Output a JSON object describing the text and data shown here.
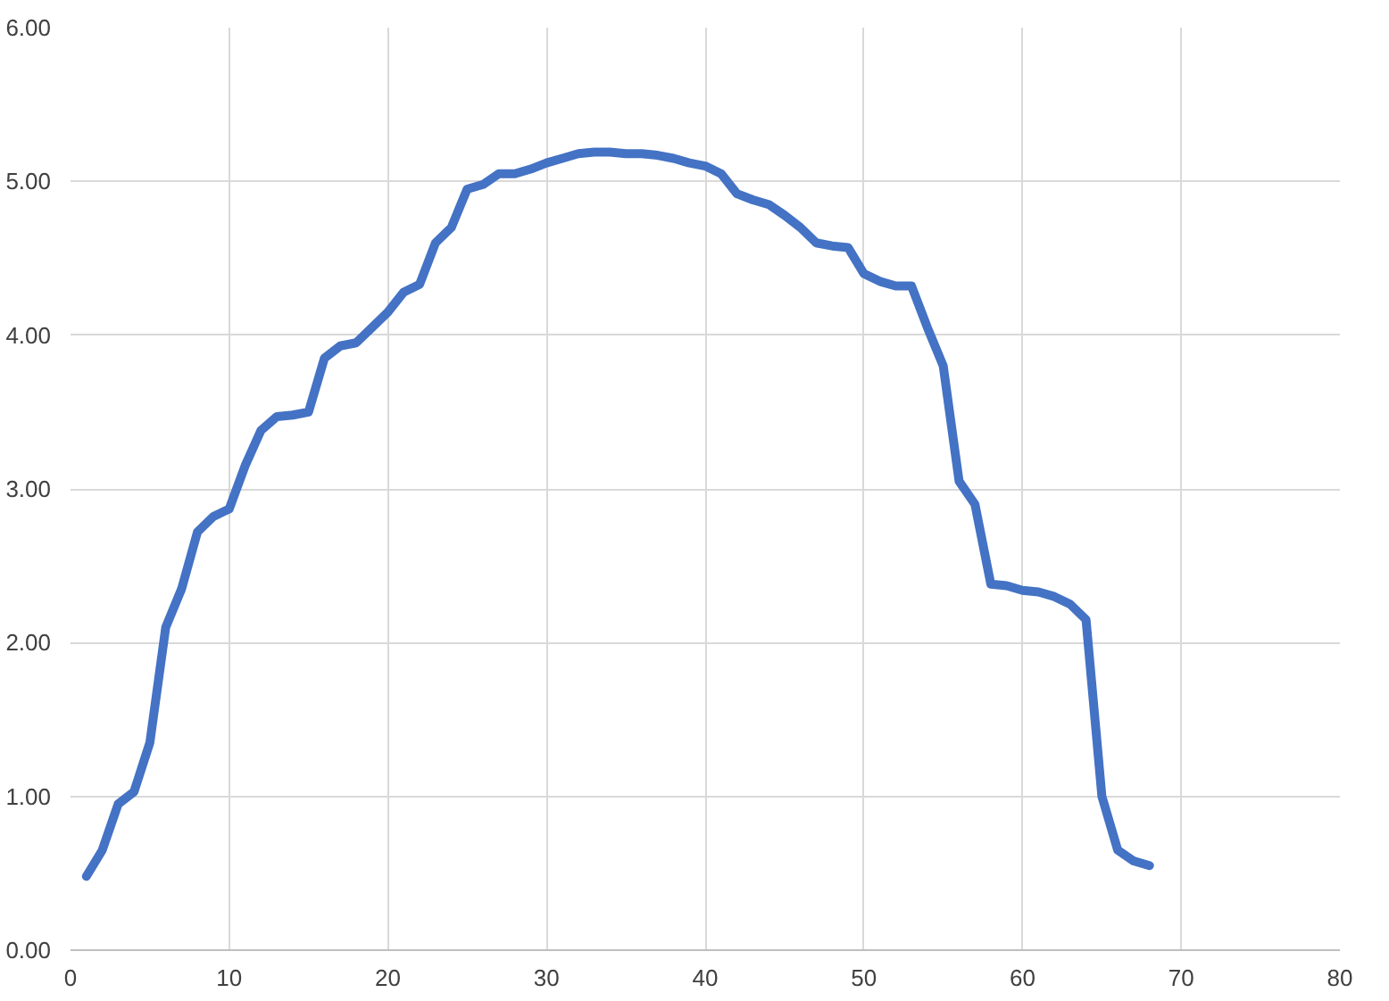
{
  "chart_data": {
    "type": "line",
    "x": [
      1,
      2,
      3,
      4,
      5,
      6,
      7,
      8,
      9,
      10,
      11,
      12,
      13,
      14,
      15,
      16,
      17,
      18,
      19,
      20,
      21,
      22,
      23,
      24,
      25,
      26,
      27,
      28,
      29,
      30,
      31,
      32,
      33,
      34,
      35,
      36,
      37,
      38,
      39,
      40,
      41,
      42,
      43,
      44,
      45,
      46,
      47,
      48,
      49,
      50,
      51,
      52,
      53,
      54,
      55,
      56,
      57,
      58,
      59,
      60,
      61,
      62,
      63,
      64,
      65,
      66,
      67,
      68
    ],
    "series": [
      {
        "color": "#4472c4",
        "values": [
          0.48,
          0.65,
          0.95,
          1.03,
          1.35,
          2.1,
          2.35,
          2.72,
          2.82,
          2.87,
          3.15,
          3.38,
          3.47,
          3.48,
          3.5,
          3.85,
          3.93,
          3.95,
          4.05,
          4.15,
          4.28,
          4.33,
          4.6,
          4.7,
          4.95,
          4.98,
          5.05,
          5.05,
          5.08,
          5.12,
          5.15,
          5.18,
          5.19,
          5.19,
          5.18,
          5.18,
          5.17,
          5.15,
          5.12,
          5.1,
          5.05,
          4.92,
          4.88,
          4.85,
          4.78,
          4.7,
          4.6,
          4.58,
          4.57,
          4.4,
          4.35,
          4.32,
          4.32,
          4.05,
          3.8,
          3.05,
          2.9,
          2.38,
          2.37,
          2.34,
          2.33,
          2.3,
          2.25,
          2.15,
          1.0,
          0.65,
          0.58,
          0.55
        ]
      }
    ],
    "xlim": [
      0,
      80
    ],
    "xticks": [
      0,
      10,
      20,
      30,
      40,
      50,
      60,
      70,
      80
    ],
    "ylim": [
      0,
      6
    ],
    "yticks": [
      {
        "value": 0,
        "label": "0.00"
      },
      {
        "value": 1,
        "label": "1.00"
      },
      {
        "value": 2,
        "label": "2.00"
      },
      {
        "value": 3,
        "label": "3.00"
      },
      {
        "value": 4,
        "label": "4.00"
      },
      {
        "value": 5,
        "label": "5.00"
      },
      {
        "value": 6,
        "label": "6.00"
      }
    ],
    "grid": true
  }
}
